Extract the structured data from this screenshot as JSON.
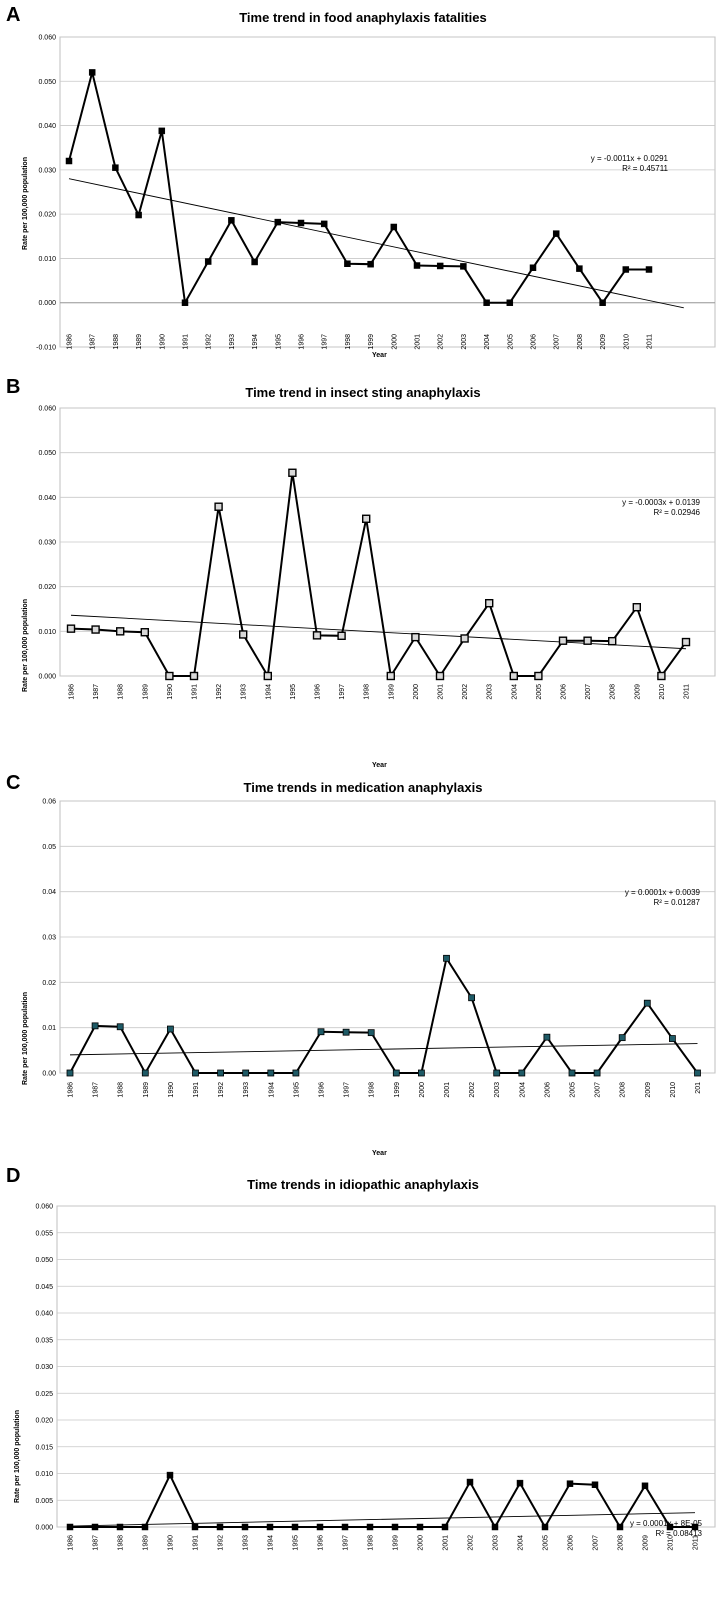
{
  "chart_data": [
    {
      "panel": "A",
      "type": "line",
      "title": "Time trend in food anaphylaxis fatalities",
      "xlabel": "Year",
      "ylabel": "Rate per 100,000 population",
      "ylim": [
        -0.01,
        0.06
      ],
      "yticks": [
        "-0.010",
        "0.000",
        "0.010",
        "0.020",
        "0.030",
        "0.040",
        "0.050",
        "0.060"
      ],
      "categories": [
        "1986",
        "1987",
        "1988",
        "1989",
        "1990",
        "1991",
        "1992",
        "1993",
        "1994",
        "1995",
        "1996",
        "1997",
        "1998",
        "1999",
        "2000",
        "2001",
        "2002",
        "2003",
        "2004",
        "2005",
        "2006",
        "2007",
        "2008",
        "2009",
        "2010",
        "2011"
      ],
      "values": [
        0.032,
        0.052,
        0.0305,
        0.0198,
        0.0388,
        0.0,
        0.0093,
        0.0186,
        0.0092,
        0.0182,
        0.018,
        0.0178,
        0.0088,
        0.0087,
        0.0171,
        0.0084,
        0.0083,
        0.0082,
        0.0,
        0.0,
        0.0079,
        0.0156,
        0.0077,
        0.0,
        0.0075,
        0.0075
      ],
      "trendline": {
        "slope": -0.0011,
        "intercept": 0.0291,
        "extend_to": 27.5
      },
      "equation": "y = -0.0011x + 0.0291",
      "r2": "R² = 0.45711",
      "grid": true
    },
    {
      "panel": "B",
      "type": "line",
      "title": "Time trend in insect sting anaphylaxis",
      "xlabel": "Year",
      "ylabel": "Rate per 100,000 population",
      "ylim": [
        0,
        0.06
      ],
      "yticks": [
        "0.000",
        "0.010",
        "0.020",
        "0.030",
        "0.040",
        "0.050",
        "0.060"
      ],
      "categories": [
        "1986",
        "1987",
        "1988",
        "1989",
        "1990",
        "1991",
        "1992",
        "1993",
        "1994",
        "1995",
        "1996",
        "1997",
        "1998",
        "1999",
        "2000",
        "2001",
        "2002",
        "2003",
        "2004",
        "2005",
        "2006",
        "2007",
        "2008",
        "2009",
        "2010",
        "2011"
      ],
      "values": [
        0.0106,
        0.0104,
        0.01,
        0.0098,
        0.0,
        0.0,
        0.0379,
        0.0093,
        0.0,
        0.0455,
        0.0091,
        0.009,
        0.0352,
        0.0,
        0.0087,
        0.0,
        0.0084,
        0.0163,
        0.0,
        0.0,
        0.0079,
        0.0079,
        0.0078,
        0.0154,
        0.0,
        0.0076
      ],
      "trendline": {
        "slope": -0.0003,
        "intercept": 0.0139,
        "extend_to": 26
      },
      "equation": "y = -0.0003x + 0.0139",
      "r2": "R² = 0.02946",
      "grid": true
    },
    {
      "panel": "C",
      "type": "line",
      "title": "Time trends in medication anaphylaxis",
      "xlabel": "Year",
      "ylabel": "Rate per 100,000 population",
      "ylim": [
        0,
        0.06
      ],
      "yticks": [
        "0.00",
        "0.01",
        "0.02",
        "0.03",
        "0.04",
        "0.05",
        "0.06"
      ],
      "categories": [
        "1986",
        "1987",
        "1988",
        "1989",
        "1990",
        "1991",
        "1992",
        "1993",
        "1994",
        "1995",
        "1996",
        "1997",
        "1998",
        "1999",
        "2000",
        "2001",
        "2002",
        "2003",
        "2004",
        "2006",
        "2005",
        "2007",
        "2008",
        "2009",
        "2010",
        "201"
      ],
      "values": [
        0.0,
        0.0104,
        0.0102,
        0.0,
        0.0097,
        0.0,
        0.0,
        0.0,
        0.0,
        0.0,
        0.0091,
        0.009,
        0.0089,
        0.0,
        0.0,
        0.0253,
        0.0166,
        0.0,
        0.0,
        0.0079,
        0.0,
        0.0,
        0.0078,
        0.0154,
        0.0076,
        0.0
      ],
      "trendline": {
        "slope": 0.0001,
        "intercept": 0.0039,
        "extend_to": 26
      },
      "equation": "y = 0.0001x + 0.0039",
      "r2": "R² = 0.01287",
      "grid": true
    },
    {
      "panel": "D",
      "type": "line",
      "title": "Time trends in idiopathic anaphylaxis",
      "xlabel": "",
      "ylabel": "Rate per 100,000 population",
      "ylim": [
        0,
        0.06
      ],
      "yticks": [
        "0.000",
        "0.005",
        "0.010",
        "0.015",
        "0.020",
        "0.025",
        "0.030",
        "0.035",
        "0.040",
        "0.045",
        "0.050",
        "0.055",
        "0.060"
      ],
      "categories": [
        "1986",
        "1987",
        "1988",
        "1989",
        "1990",
        "1991",
        "1992",
        "1993",
        "1994",
        "1995",
        "1996",
        "1997",
        "1998",
        "1999",
        "2000",
        "2001",
        "2002",
        "2003",
        "2004",
        "2005",
        "2006",
        "2007",
        "2008",
        "2009",
        "2010",
        "2011"
      ],
      "values": [
        0.0,
        0.0,
        0.0,
        0.0,
        0.0097,
        0.0,
        0.0,
        0.0,
        0.0,
        0.0,
        0.0,
        0.0,
        0.0,
        0.0,
        0.0,
        0.0,
        0.0084,
        0.0,
        0.0082,
        0.0,
        0.0081,
        0.0079,
        0.0,
        0.0077,
        0.0,
        0.0
      ],
      "trendline": {
        "slope": 0.0001,
        "intercept": 8e-05,
        "extend_to": 26
      },
      "equation": "y = 0.0001x + 8E-05",
      "r2": "R² = 0.08413",
      "grid": true
    }
  ]
}
